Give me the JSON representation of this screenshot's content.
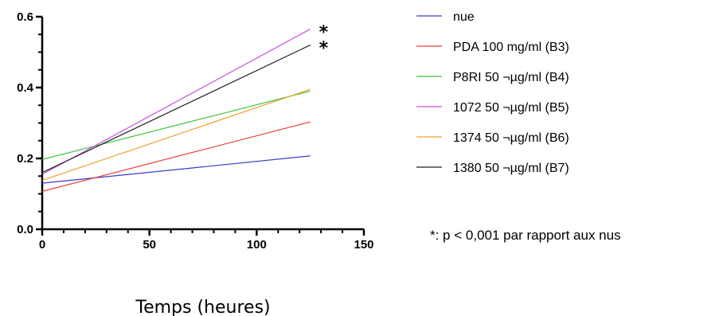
{
  "chart_data": {
    "type": "line",
    "title": "",
    "xlabel": "Temps (heures)",
    "ylabel": "",
    "xlim": [
      0,
      150
    ],
    "ylim": [
      0,
      0.6
    ],
    "xticks": [
      0,
      50,
      100,
      150
    ],
    "xtick_labels": [
      "0",
      "50",
      "100",
      "150"
    ],
    "yticks": [
      0.0,
      0.2,
      0.4,
      0.6
    ],
    "ytick_labels": [
      "0.0",
      "0.2",
      "0.4",
      "0.6"
    ],
    "grid": false,
    "legend_position": "right",
    "series": [
      {
        "name": "nue",
        "color": "#3a3ad0",
        "x": [
          0,
          125
        ],
        "y": [
          0.13,
          0.207
        ]
      },
      {
        "name": "PDA 100 mg/ml (B3)",
        "color": "#e8423a",
        "x": [
          0,
          125
        ],
        "y": [
          0.107,
          0.303
        ]
      },
      {
        "name": "P8RI 50 ¬µg/ml (B4)",
        "color": "#3cc43c",
        "x": [
          0,
          125
        ],
        "y": [
          0.197,
          0.39
        ]
      },
      {
        "name": "1072 50 ¬µg/ml (B5)",
        "color": "#c84ee8",
        "x": [
          0,
          125
        ],
        "y": [
          0.155,
          0.565
        ]
      },
      {
        "name": "1374 50 ¬µg/ml (B6)",
        "color": "#f0a030",
        "x": [
          0,
          125
        ],
        "y": [
          0.138,
          0.395
        ]
      },
      {
        "name": "1380 50 ¬µg/ml (B7)",
        "color": "#202020",
        "x": [
          0,
          125
        ],
        "y": [
          0.16,
          0.52
        ]
      }
    ],
    "annotations": [
      {
        "text": "*",
        "series": "1072 50 ¬µg/ml (B5)"
      },
      {
        "text": "*",
        "series": "1380 50 ¬µg/ml (B7)"
      }
    ],
    "note": "*: p < 0,001 par rapport aux nus"
  }
}
